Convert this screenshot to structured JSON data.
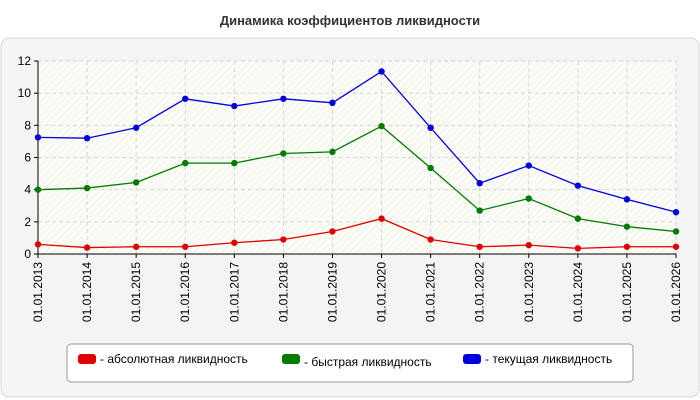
{
  "chart_data": {
    "type": "line",
    "title": "Динамика коэффициентов ликвидности",
    "xlabel": "",
    "ylabel": "",
    "categories": [
      "01.01.2013",
      "01.01.2014",
      "01.01.2015",
      "01.01.2016",
      "01.01.2017",
      "01.01.2018",
      "01.01.2019",
      "01.01.2020",
      "01.01.2021",
      "01.01.2022",
      "01.01.2023",
      "01.01.2024",
      "01.01.2025",
      "01.01.2026"
    ],
    "ylim": [
      0,
      12
    ],
    "yticks": [
      0,
      2,
      4,
      6,
      8,
      10,
      12
    ],
    "grid": true,
    "legend_position": "bottom",
    "series": [
      {
        "name": "- абсолютная ликвидность",
        "color": "#e00000",
        "values": [
          0.6,
          0.4,
          0.45,
          0.45,
          0.7,
          0.9,
          1.4,
          2.2,
          0.9,
          0.45,
          0.55,
          0.35,
          0.45,
          0.45
        ]
      },
      {
        "name": "- быстрая ликвидность",
        "color": "#007a00",
        "values": [
          4.0,
          4.1,
          4.45,
          5.65,
          5.65,
          6.25,
          6.35,
          7.95,
          5.35,
          2.7,
          3.45,
          2.2,
          1.7,
          1.4
        ]
      },
      {
        "name": "- текущая ликвидность",
        "color": "#0000dd",
        "values": [
          7.25,
          7.2,
          7.85,
          9.65,
          9.2,
          9.65,
          9.4,
          11.35,
          7.85,
          4.4,
          5.5,
          4.25,
          3.4,
          2.6
        ]
      }
    ]
  }
}
